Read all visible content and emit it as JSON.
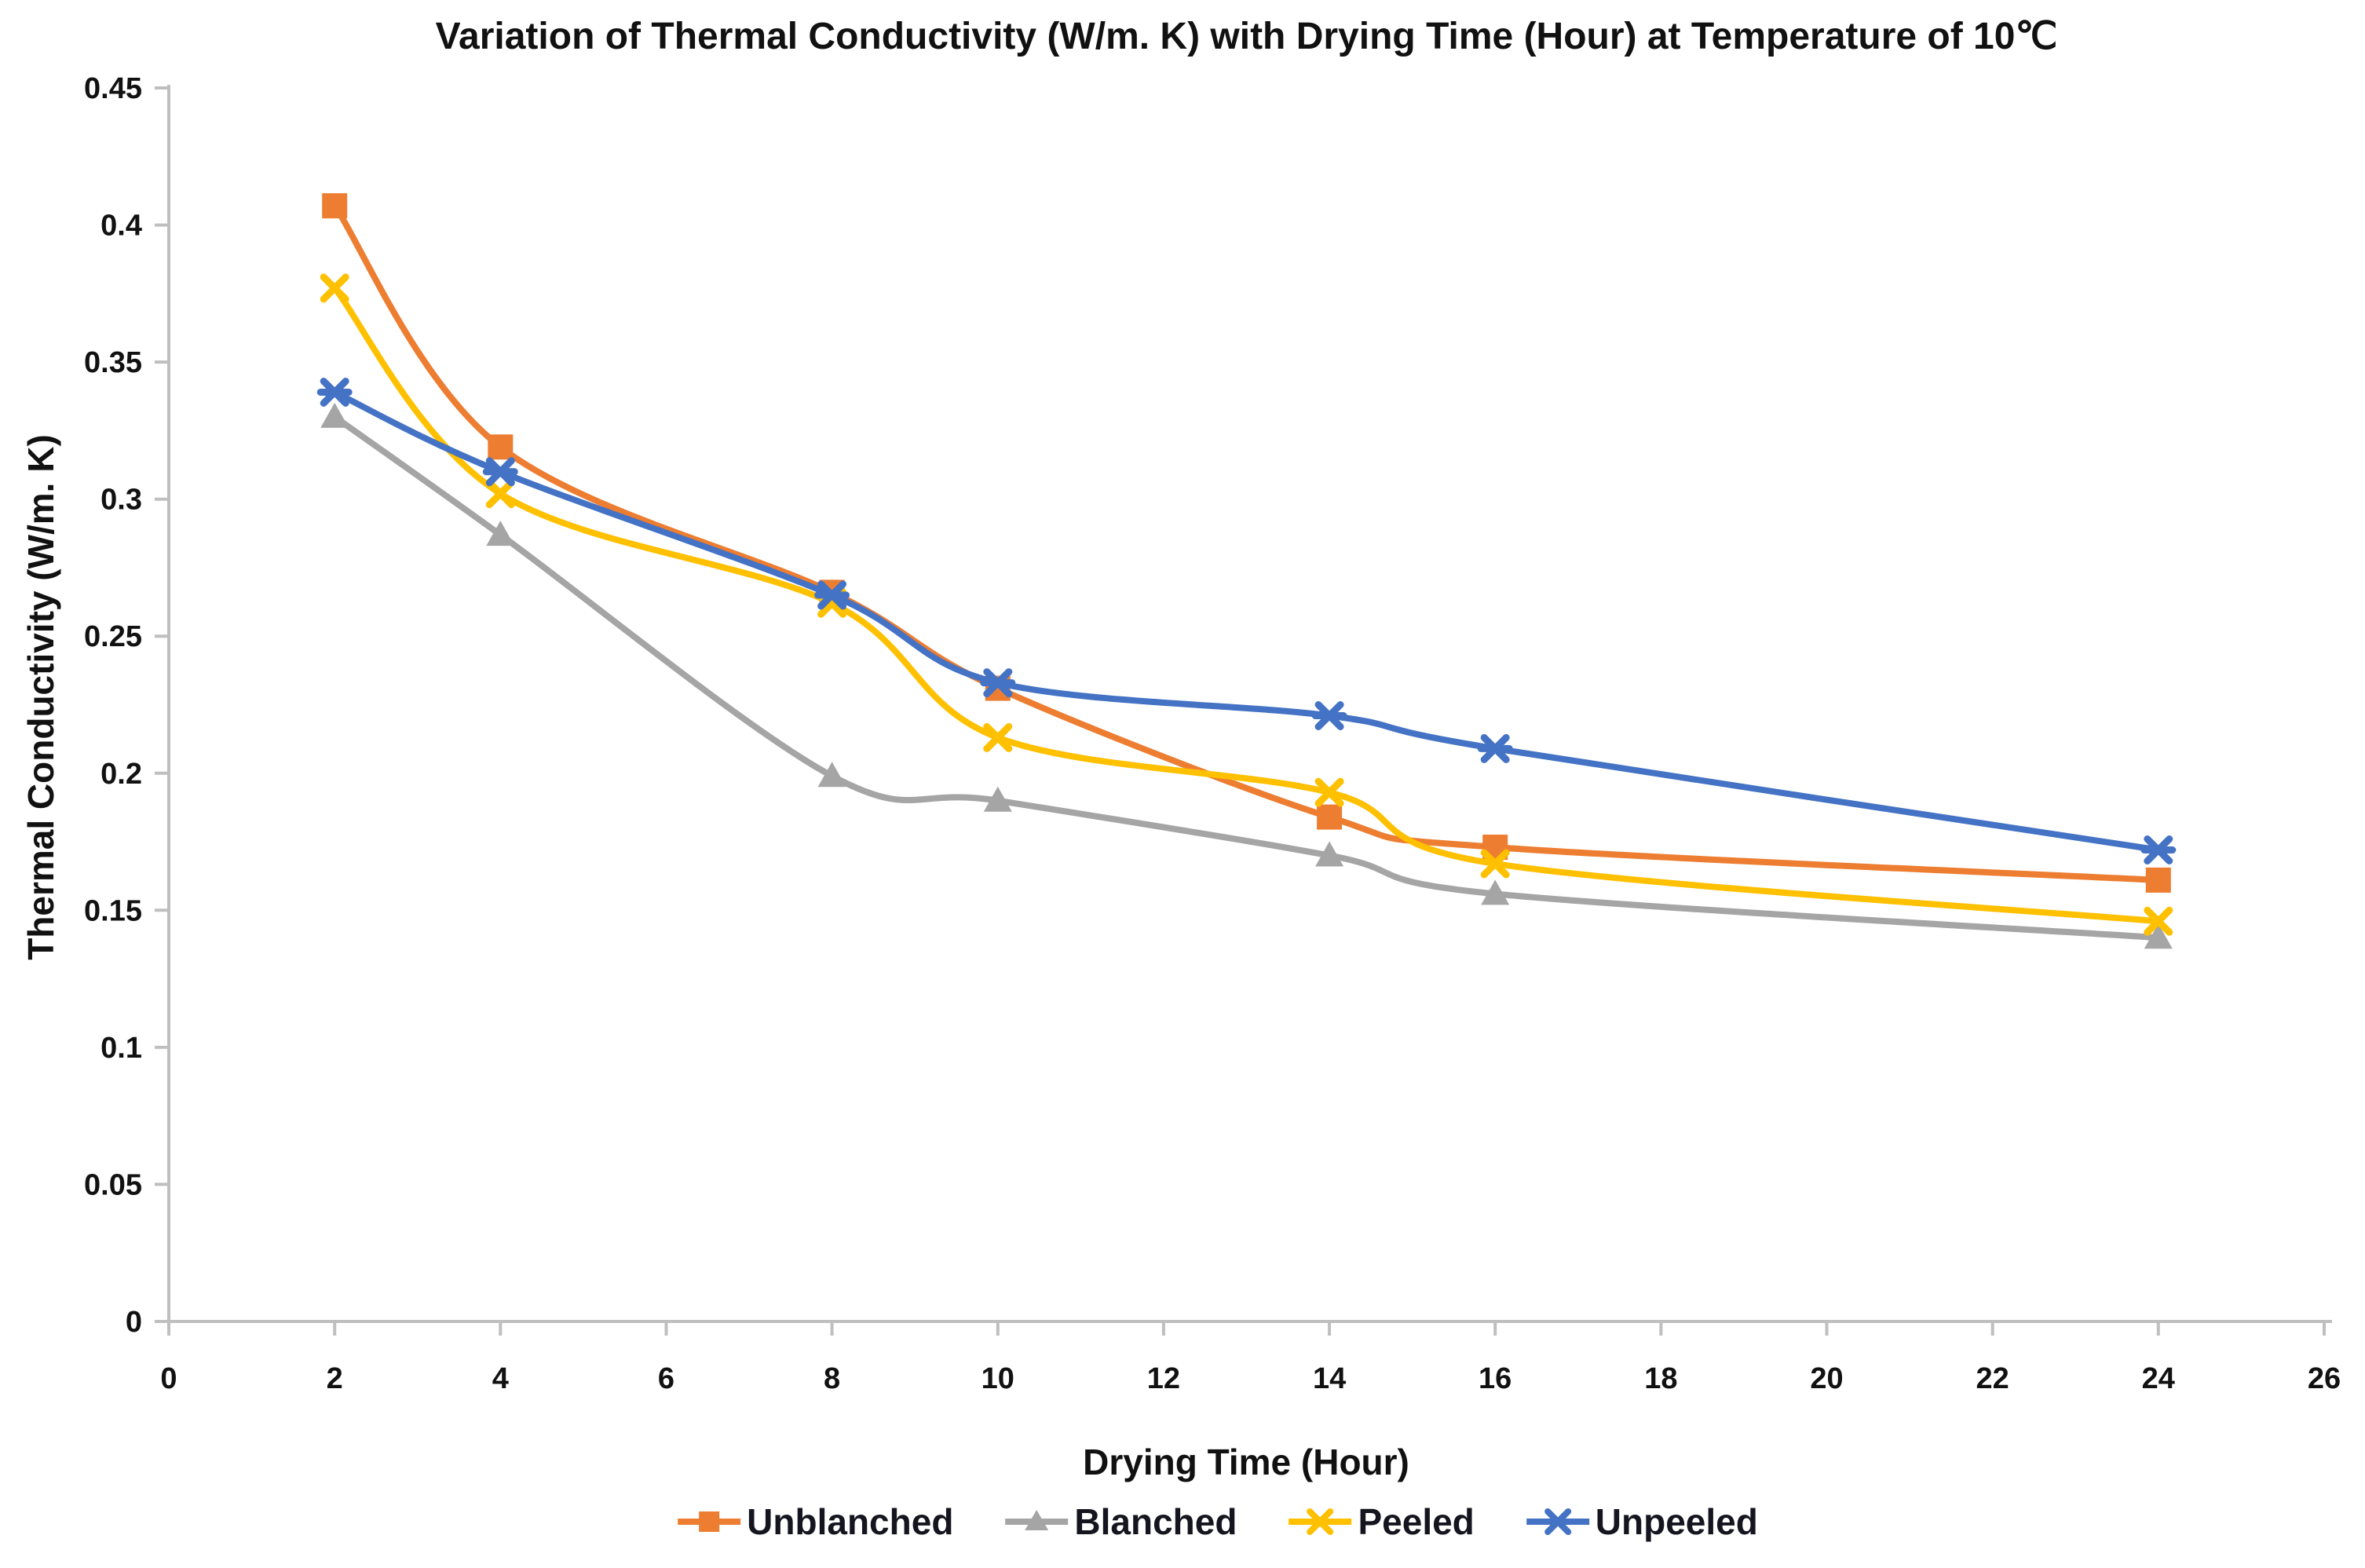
{
  "title": "Variation of Thermal Conductivity (W/m. K) with Drying Time (Hour) at Temperature of 10℃",
  "chart_data": {
    "type": "line",
    "title": "Variation of Thermal Conductivity (W/m. K) with Drying Time (Hour) at Temperature of 10℃",
    "xlabel": "Drying Time (Hour)",
    "ylabel": "Thermal Conductivity (W/m. K)",
    "x": [
      2,
      4,
      8,
      10,
      14,
      16,
      24
    ],
    "series": [
      {
        "name": "Unblanched",
        "color": "#ED7D31",
        "marker": "square",
        "values": [
          0.407,
          0.319,
          0.266,
          0.231,
          0.184,
          0.173,
          0.161
        ]
      },
      {
        "name": "Blanched",
        "color": "#A5A5A5",
        "marker": "triangle",
        "values": [
          0.33,
          0.287,
          0.199,
          0.19,
          0.17,
          0.156,
          0.14
        ]
      },
      {
        "name": "Peeled",
        "color": "#FFC000",
        "marker": "x",
        "values": [
          0.377,
          0.302,
          0.262,
          0.213,
          0.193,
          0.167,
          0.146
        ]
      },
      {
        "name": "Unpeeled",
        "color": "#4472C4",
        "marker": "x-line",
        "values": [
          0.339,
          0.31,
          0.265,
          0.233,
          0.221,
          0.209,
          0.172
        ]
      }
    ],
    "xlim": [
      0,
      26
    ],
    "ylim": [
      0,
      0.45
    ],
    "x_ticks": [
      0,
      2,
      4,
      6,
      8,
      10,
      12,
      14,
      16,
      18,
      20,
      22,
      24,
      26
    ],
    "x_tick_labels": [
      "0",
      "2",
      "4",
      "6",
      "8",
      "10",
      "12",
      "14",
      "16",
      "18",
      "20",
      "22",
      "24",
      "26"
    ],
    "y_ticks": [
      0,
      0.05,
      0.1,
      0.15,
      0.2,
      0.25,
      0.3,
      0.35,
      0.4,
      0.45
    ],
    "y_tick_labels": [
      "0",
      "0.05",
      "0.1",
      "0.15",
      "0.2",
      "0.25",
      "0.3",
      "0.35",
      "0.4",
      "0.45"
    ],
    "grid": false,
    "smooth": true,
    "legend_position": "bottom",
    "axis_color": "#BFBFBF",
    "tick_color": "#BFBFBF",
    "text_color": "#111111"
  }
}
